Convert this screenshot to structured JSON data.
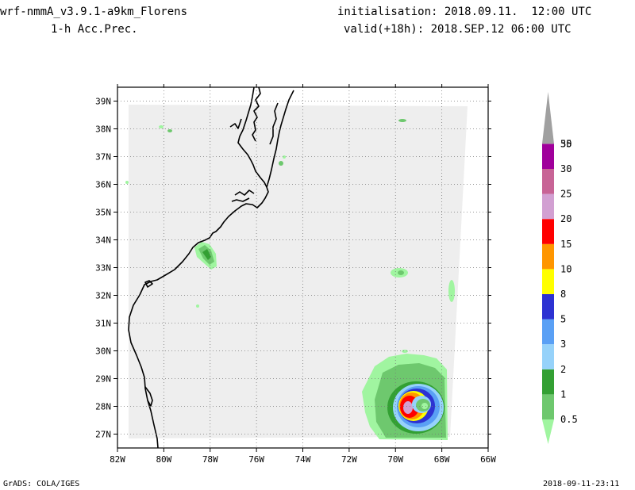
{
  "header": {
    "model": "wrf-nmmA_v3.9.1-a9km_Florens",
    "field": "1-h Acc.Prec.",
    "init": "initialisation: 2018.09.11.  12:00 UTC",
    "valid": "valid(+18h): 2018.SEP.12 06:00 UTC"
  },
  "footer": {
    "credit": "GrADS: COLA/IGES",
    "timestamp": "2018-09-11-23:11"
  },
  "map": {
    "lon_range": [
      -82,
      -66
    ],
    "lat_range": [
      26.5,
      39.5
    ],
    "lon_ticks": [
      {
        "value": -82,
        "label": "82W"
      },
      {
        "value": -80,
        "label": "80W"
      },
      {
        "value": -78,
        "label": "78W"
      },
      {
        "value": -76,
        "label": "76W"
      },
      {
        "value": -74,
        "label": "74W"
      },
      {
        "value": -72,
        "label": "72W"
      },
      {
        "value": -70,
        "label": "70W"
      },
      {
        "value": -68,
        "label": "68W"
      },
      {
        "value": -66,
        "label": "66W"
      }
    ],
    "lat_ticks": [
      {
        "value": 27,
        "label": "27N"
      },
      {
        "value": 28,
        "label": "28N"
      },
      {
        "value": 29,
        "label": "29N"
      },
      {
        "value": 30,
        "label": "30N"
      },
      {
        "value": 31,
        "label": "31N"
      },
      {
        "value": 32,
        "label": "32N"
      },
      {
        "value": 33,
        "label": "33N"
      },
      {
        "value": 34,
        "label": "34N"
      },
      {
        "value": 35,
        "label": "35N"
      },
      {
        "value": 36,
        "label": "36N"
      },
      {
        "value": 37,
        "label": "37N"
      },
      {
        "value": 38,
        "label": "38N"
      },
      {
        "value": 39,
        "label": "39N"
      }
    ],
    "grid": true,
    "domain_color": "#eeeeee",
    "coast_color": "#000000"
  },
  "legend": {
    "placement": "right",
    "levels": [
      {
        "label": "0.5",
        "color": "#a0f5a0"
      },
      {
        "label": "1",
        "color": "#6ec86e"
      },
      {
        "label": "2",
        "color": "#33a033"
      },
      {
        "label": "3",
        "color": "#96d2fa"
      },
      {
        "label": "5",
        "color": "#5aa0f5"
      },
      {
        "label": "8",
        "color": "#2d32d2"
      },
      {
        "label": "10",
        "color": "#ffff00"
      },
      {
        "label": "15",
        "color": "#ff9600"
      },
      {
        "label": "20",
        "color": "#ff0000"
      },
      {
        "label": "25",
        "color": "#d2a0d2"
      },
      {
        "label": "30",
        "color": "#c86496"
      },
      {
        "label": "35",
        "color": "#a0009b"
      },
      {
        "label": "50",
        "color": "#a0a0a0"
      }
    ]
  }
}
